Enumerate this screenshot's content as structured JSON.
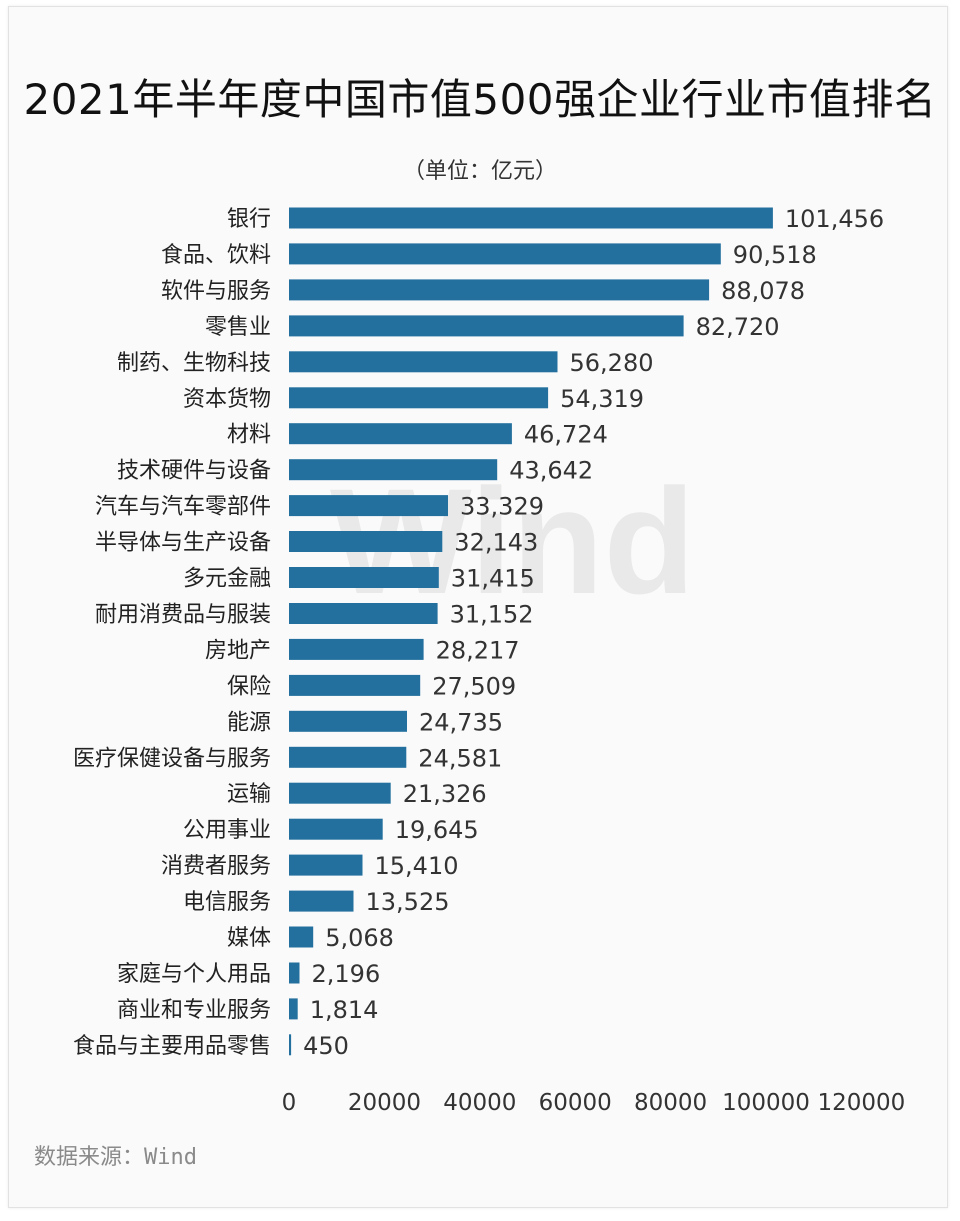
{
  "title": "2021年半年度中国市值500强企业行业市值排名",
  "unit": "（单位：亿元）",
  "source": "数据来源：Wind",
  "watermark_text": "Wind",
  "colors": {
    "bar": "#23709e",
    "background": "#fafafa",
    "watermark": "#e9e9ea"
  },
  "chart_data": {
    "type": "bar",
    "orientation": "horizontal",
    "title": "2021年半年度中国市值500强企业行业市值排名",
    "subtitle": "（单位：亿元）",
    "xlabel": "",
    "ylabel": "",
    "xlim": [
      0,
      120000
    ],
    "xticks": [
      "0",
      "20000",
      "40000",
      "60000",
      "80000",
      "100000",
      "120000"
    ],
    "grid": false,
    "categories": [
      "银行",
      "食品、饮料",
      "软件与服务",
      "零售业",
      "制药、生物科技",
      "资本货物",
      "材料",
      "技术硬件与设备",
      "汽车与汽车零部件",
      "半导体与生产设备",
      "多元金融",
      "耐用消费品与服装",
      "房地产",
      "保险",
      "能源",
      "医疗保健设备与服务",
      "运输",
      "公用事业",
      "消费者服务",
      "电信服务",
      "媒体",
      "家庭与个人用品",
      "商业和专业服务",
      "食品与主要用品零售"
    ],
    "values": [
      101456,
      90518,
      88078,
      82720,
      56280,
      54319,
      46724,
      43642,
      33329,
      32143,
      31415,
      31152,
      28217,
      27509,
      24735,
      24581,
      21326,
      19645,
      15410,
      13525,
      5068,
      2196,
      1814,
      450
    ],
    "value_labels": [
      "101,456",
      "90,518",
      "88,078",
      "82,720",
      "56,280",
      "54,319",
      "46,724",
      "43,642",
      "33,329",
      "32,143",
      "31,415",
      "31,152",
      "28,217",
      "27,509",
      "24,735",
      "24,581",
      "21,326",
      "19,645",
      "15,410",
      "13,525",
      "5,068",
      "2,196",
      "1,814",
      "450"
    ]
  }
}
